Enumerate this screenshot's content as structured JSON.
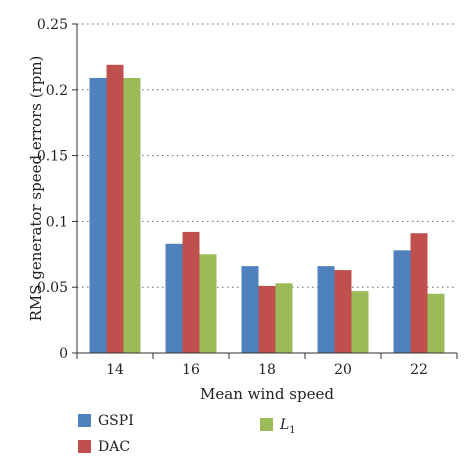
{
  "chart_data": {
    "type": "bar",
    "categories": [
      "14",
      "16",
      "18",
      "20",
      "22"
    ],
    "series": [
      {
        "name": "GSPI",
        "values": [
          0.209,
          0.083,
          0.066,
          0.066,
          0.078
        ],
        "color": "#4f81bd"
      },
      {
        "name": "DAC",
        "values": [
          0.219,
          0.092,
          0.051,
          0.063,
          0.091
        ],
        "color": "#c0504d"
      },
      {
        "name": "L1",
        "values": [
          0.209,
          0.075,
          0.053,
          0.047,
          0.045
        ],
        "color": "#9bbb59"
      }
    ],
    "xlabel": "Mean wind speed",
    "ylabel": "RMS generator speed errors (rpm)",
    "ylim": [
      0,
      0.25
    ],
    "yticks": [
      "0",
      "0.05",
      "0.1",
      "0.15",
      "0.2",
      "0.25"
    ],
    "grid": true,
    "legend_position": "bottom"
  }
}
